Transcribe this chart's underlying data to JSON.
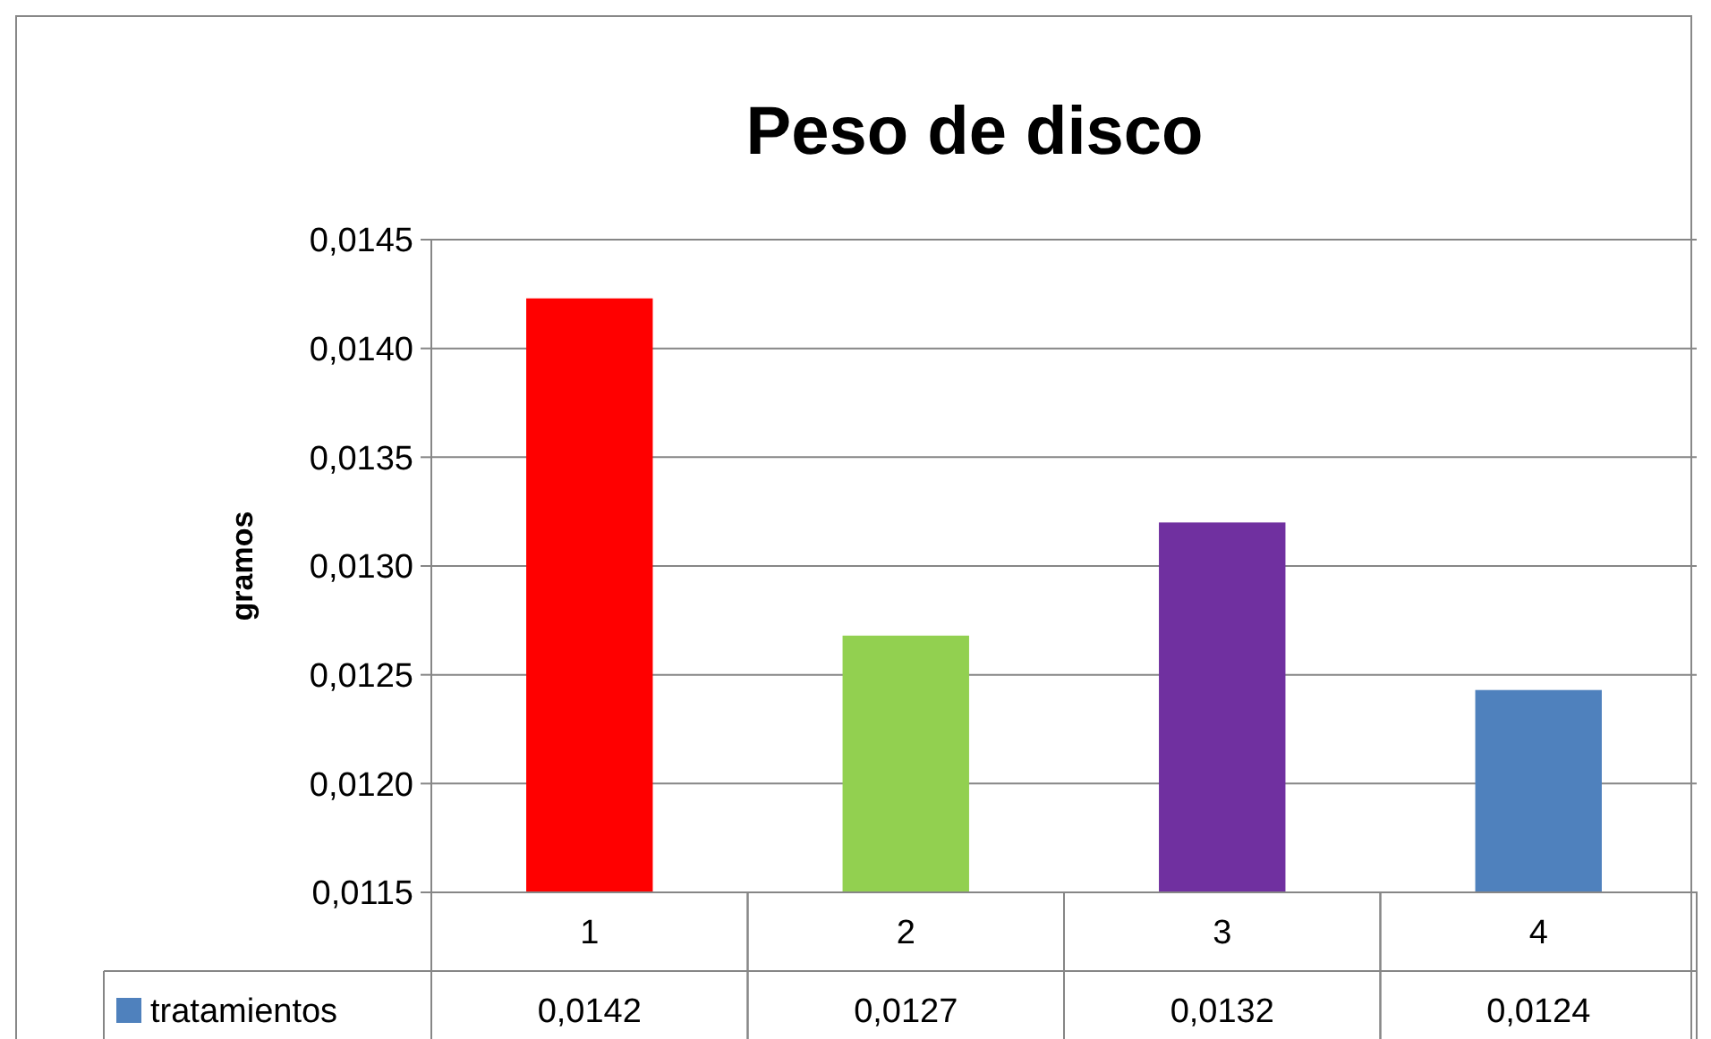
{
  "chart_data": {
    "type": "bar",
    "title": "Peso de disco",
    "ylabel": "gramos",
    "categories": [
      "1",
      "2",
      "3",
      "4"
    ],
    "series": [
      {
        "name": "tratamientos",
        "color": "#4f81bd",
        "colors": [
          "#ff0000",
          "#92d050",
          "#7030a0",
          "#4f81bd"
        ],
        "values": [
          0.01423,
          0.01268,
          0.0132,
          0.01243
        ],
        "value_labels": [
          "0,0142",
          "0,0127",
          "0,0132",
          "0,0124"
        ]
      }
    ],
    "ylim": [
      0.0115,
      0.0145
    ],
    "yticks": [
      {
        "value": 0.0115,
        "label": "0,0115"
      },
      {
        "value": 0.012,
        "label": "0,0120"
      },
      {
        "value": 0.0125,
        "label": "0,0125"
      },
      {
        "value": 0.013,
        "label": "0,0130"
      },
      {
        "value": 0.0135,
        "label": "0,0135"
      },
      {
        "value": 0.014,
        "label": "0,0140"
      },
      {
        "value": 0.0145,
        "label": "0,0145"
      }
    ],
    "grid": "y",
    "legend": "bottom"
  }
}
